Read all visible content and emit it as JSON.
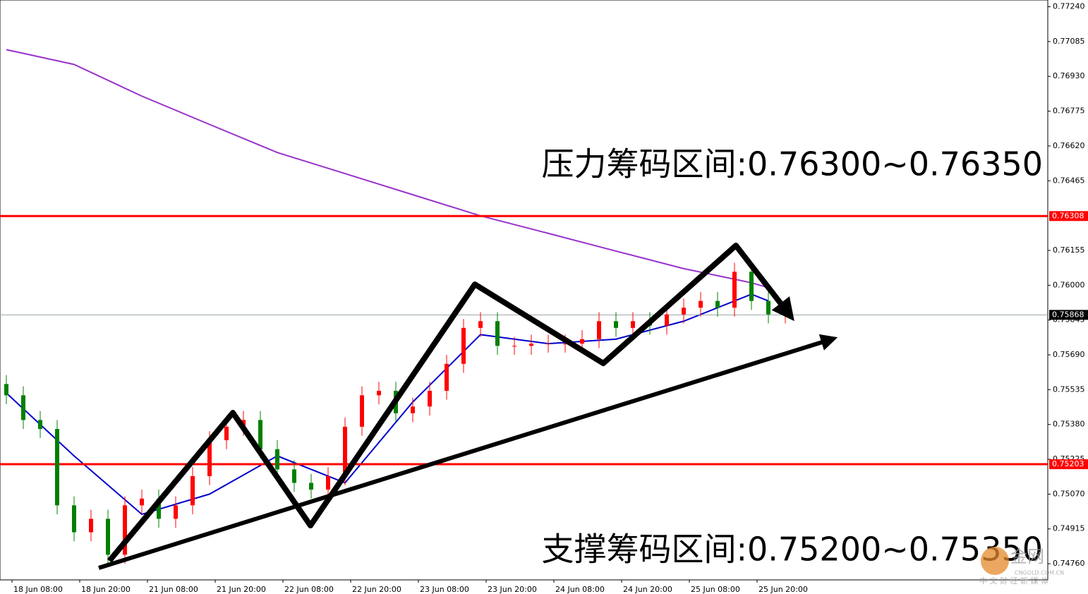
{
  "chart_data": {
    "type": "candlestick",
    "categories": [
      null,
      null,
      "18 Jun 08:00",
      null,
      null,
      null,
      "18 Jun 20:00",
      null,
      null,
      null,
      "21 Jun 08:00",
      null,
      null,
      null,
      "21 Jun 20:00",
      null,
      null,
      null,
      "22 Jun 08:00",
      null,
      null,
      null,
      "22 Jun 20:00",
      null,
      null,
      null,
      "23 Jun 08:00",
      null,
      null,
      null,
      "23 Jun 20:00",
      null,
      null,
      null,
      "24 Jun 08:00",
      null,
      null,
      null,
      "24 Jun 20:00",
      null,
      null,
      null,
      "25 Jun 08:00",
      null,
      null,
      null,
      "25 Jun 20:00"
    ],
    "open": [
      0.7556,
      0.7551,
      0.754,
      0.7536,
      0.7502,
      0.749,
      0.7496,
      0.748,
      0.7502,
      0.7505,
      0.7496,
      0.7502,
      0.7515,
      0.7531,
      0.7537,
      0.754,
      0.7527,
      0.7518,
      0.7512,
      0.7509,
      0.7515,
      0.7537,
      0.7551,
      0.7553,
      0.7543,
      0.7546,
      0.7553,
      0.7565,
      0.7581,
      0.7584,
      0.7573,
      0.7573,
      0.7574,
      0.7574,
      0.7574,
      0.7576,
      0.7584,
      0.7581,
      0.7584,
      0.7582,
      0.7587,
      0.759,
      0.7593,
      0.759,
      0.7606,
      0.7593,
      0.7587
    ],
    "high": [
      0.756,
      0.7555,
      0.7544,
      0.754,
      0.7506,
      0.75,
      0.75,
      0.7506,
      0.7509,
      0.7509,
      0.7506,
      0.7519,
      0.7535,
      0.7541,
      0.7544,
      0.7544,
      0.7531,
      0.7522,
      0.7516,
      0.7519,
      0.7541,
      0.7555,
      0.7557,
      0.7557,
      0.755,
      0.7557,
      0.7569,
      0.7585,
      0.7588,
      0.7588,
      0.7577,
      0.7578,
      0.7578,
      0.7578,
      0.758,
      0.7588,
      0.7588,
      0.7588,
      0.7588,
      0.7591,
      0.7594,
      0.7597,
      0.7597,
      0.761,
      0.761,
      0.7597,
      0.7591
    ],
    "low": [
      0.7547,
      0.7536,
      0.7532,
      0.7498,
      0.7486,
      0.7486,
      0.7476,
      0.7476,
      0.7498,
      0.7492,
      0.7492,
      0.7498,
      0.7511,
      0.7527,
      0.7533,
      0.7523,
      0.7514,
      0.7508,
      0.7505,
      0.7505,
      0.7511,
      0.7533,
      0.7547,
      0.7539,
      0.7539,
      0.7542,
      0.7549,
      0.7561,
      0.7577,
      0.7569,
      0.7569,
      0.7569,
      0.757,
      0.757,
      0.757,
      0.7572,
      0.7577,
      0.7577,
      0.7578,
      0.7578,
      0.7583,
      0.7586,
      0.7586,
      0.7586,
      0.7589,
      0.7583,
      0.7583
    ],
    "close": [
      0.7551,
      0.754,
      0.7536,
      0.7502,
      0.749,
      0.7496,
      0.748,
      0.7502,
      0.7505,
      0.7496,
      0.7502,
      0.7515,
      0.7531,
      0.7537,
      0.754,
      0.7527,
      0.7518,
      0.7512,
      0.7509,
      0.7515,
      0.7537,
      0.7551,
      0.7553,
      0.7543,
      0.7546,
      0.7553,
      0.7565,
      0.7581,
      0.7584,
      0.7573,
      0.7573,
      0.7574,
      0.7574,
      0.7574,
      0.7576,
      0.7584,
      0.7581,
      0.7584,
      0.7582,
      0.7587,
      0.759,
      0.7593,
      0.759,
      0.7606,
      0.7593,
      0.7587,
      0.7587
    ],
    "up_color": "#ff0000",
    "down_color": "#008000",
    "ylim": [
      0.74688,
      0.7727
    ],
    "yticks": [
      {
        "value": 0.7724,
        "label": "0.77240"
      },
      0.77085,
      {
        "value": 0.7693,
        "label": "0.76930"
      },
      0.76775,
      {
        "value": 0.7662,
        "label": "0.76620"
      },
      0.76465,
      0.76155,
      {
        "value": 0.76,
        "label": "0.76000"
      },
      0.75845,
      {
        "value": 0.7569,
        "label": "0.75690"
      },
      0.75535,
      {
        "value": 0.7538,
        "label": "0.75380"
      },
      0.75225,
      {
        "value": 0.7507,
        "label": "0.75070"
      },
      0.74915,
      {
        "value": 0.7476,
        "label": "0.74760"
      }
    ],
    "indicators": [
      {
        "color": "#9932cc",
        "x": [
          0,
          4,
          8,
          12,
          16,
          20,
          24,
          28,
          32,
          36,
          40,
          44,
          45
        ],
        "values": [
          0.77049,
          0.76983,
          0.76842,
          0.76716,
          0.76591,
          0.76497,
          0.76403,
          0.76309,
          0.76231,
          0.76152,
          0.76074,
          0.76011,
          0.75989
        ]
      },
      {
        "color": "#0000cd",
        "x": [
          0,
          4,
          8,
          12,
          16,
          20,
          24,
          28,
          32,
          36,
          40,
          44,
          45
        ],
        "values": [
          0.7552,
          0.7524,
          0.7498,
          0.7507,
          0.7524,
          0.7512,
          0.7548,
          0.7578,
          0.7574,
          0.7576,
          0.7584,
          0.7596,
          0.7593
        ]
      }
    ],
    "levels": [
      {
        "value": 0.76308,
        "color": "#ff0000"
      },
      {
        "value": 0.75203,
        "color": "#ff0000"
      },
      {
        "value": 0.75868,
        "color": "#9aa5a8"
      }
    ],
    "annotations": [
      "压力筹码区间:0.76300~0.76350",
      "支撑筹码区间:0.75200~0.75350"
    ]
  },
  "watermark": {
    "brand": "金网",
    "domain": "CNGOLD.COM.CN",
    "slogan": "中 文 财 经 新 媒 体"
  }
}
